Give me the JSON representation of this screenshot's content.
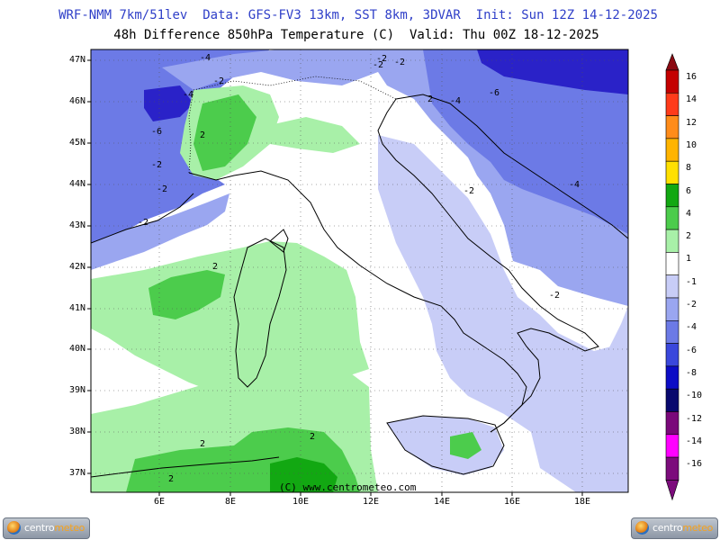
{
  "header": {
    "line1": "WRF-NMM 7km/51lev  Data: GFS-FV3 13km, SST 8km, 3DVAR  Init: Sun 12Z 14-12-2025",
    "line2": "48h Difference 850hPa Temperature (C)  Valid: Thu 00Z 18-12-2025"
  },
  "map": {
    "lat_labels": [
      "47N",
      "46N",
      "45N",
      "44N",
      "43N",
      "42N",
      "41N",
      "40N",
      "39N",
      "38N",
      "37N"
    ],
    "lon_labels": [
      "6E",
      "8E",
      "10E",
      "12E",
      "14E",
      "16E",
      "18E"
    ],
    "copyright": "(C) www.centrometeo.com",
    "contour_labels": [
      {
        "text": "-4"
      },
      {
        "text": "-2"
      },
      {
        "text": "-4"
      },
      {
        "text": "-2"
      },
      {
        "text": "2"
      },
      {
        "text": "-6"
      },
      {
        "text": "-2"
      },
      {
        "text": "-2"
      },
      {
        "text": "-2"
      },
      {
        "text": "-6"
      },
      {
        "text": "-2"
      },
      {
        "text": "-4"
      },
      {
        "text": "-2"
      },
      {
        "text": "-4"
      },
      {
        "text": "-2"
      },
      {
        "text": "2"
      },
      {
        "text": "2"
      },
      {
        "text": "2"
      },
      {
        "text": "2"
      },
      {
        "text": "2"
      },
      {
        "text": "-2"
      }
    ]
  },
  "colorbar": {
    "levels": [
      "16",
      "14",
      "12",
      "10",
      "8",
      "6",
      "4",
      "2",
      "1",
      "-1",
      "-2",
      "-4",
      "-6",
      "-8",
      "-10",
      "-12",
      "-14",
      "-16"
    ],
    "colors": [
      "#8b0a12",
      "#c40000",
      "#ff3b1a",
      "#ff8c1a",
      "#ffb400",
      "#ffe000",
      "#12a812",
      "#4ccc4c",
      "#a8f0a8",
      "#ffffff",
      "#c8cdf7",
      "#9aa6f0",
      "#6c7ae6",
      "#3a47dc",
      "#0c0cc6",
      "#08086e",
      "#7a087a",
      "#ff00ff",
      "#7c0c7c"
    ],
    "scale_tip_colors": [
      "#8b0a12",
      "#7c0c7c"
    ]
  },
  "logos": {
    "text_a": "centro",
    "text_b": "meteo"
  },
  "colors": {
    "blue_dark": "#2a22c8",
    "blue_mid": "#6c7ae6",
    "blue_light": "#9aa6f0",
    "blue_pale": "#c8cdf7",
    "green_light": "#a8f0a8",
    "green_mid": "#4ccc4c",
    "green_dark": "#12a812",
    "land": "#ffffff"
  }
}
